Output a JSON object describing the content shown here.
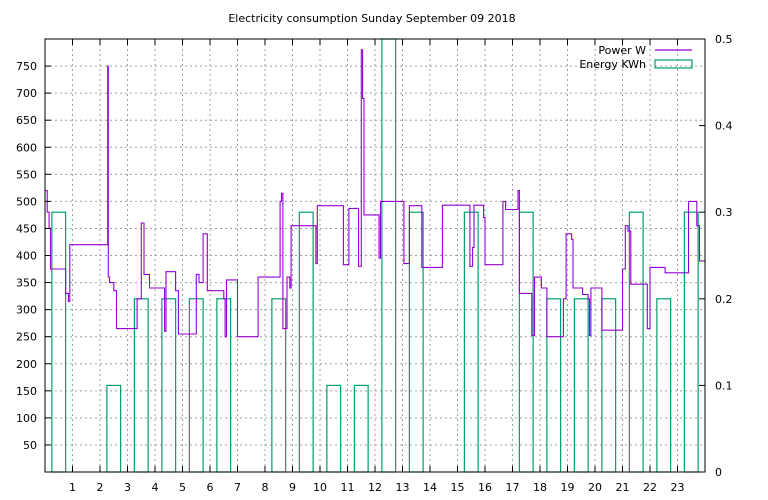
{
  "chart_data": {
    "type": "line",
    "title": "Electricity consumption Sunday September 09 2018",
    "xlabel": "",
    "ylabel": "",
    "y2label": "",
    "xlim": [
      0,
      24
    ],
    "ylim": [
      0,
      800
    ],
    "y2lim": [
      0,
      0.5
    ],
    "x_ticks": [
      "1",
      "2",
      "3",
      "4",
      "5",
      "6",
      "7",
      "8",
      "9",
      "10",
      "11",
      "12",
      "13",
      "14",
      "15",
      "16",
      "17",
      "18",
      "19",
      "20",
      "21",
      "22",
      "23"
    ],
    "y_ticks": [
      "50",
      "100",
      "150",
      "200",
      "250",
      "300",
      "350",
      "400",
      "450",
      "500",
      "550",
      "600",
      "650",
      "700",
      "750"
    ],
    "y2_ticks": [
      "0",
      "0.1",
      "0.2",
      "0.3",
      "0.4",
      "0.5"
    ],
    "grid": true,
    "legend_position": "top-right",
    "series": [
      {
        "name": "Power W",
        "axis": "left",
        "style": "step",
        "color": "#9400d3",
        "points": [
          [
            0,
            520
          ],
          [
            0.08,
            480
          ],
          [
            0.15,
            450
          ],
          [
            0.2,
            375
          ],
          [
            0.6,
            375
          ],
          [
            0.75,
            330
          ],
          [
            0.85,
            315
          ],
          [
            0.9,
            420
          ],
          [
            2.2,
            420
          ],
          [
            2.28,
            750
          ],
          [
            2.3,
            360
          ],
          [
            2.35,
            350
          ],
          [
            2.5,
            335
          ],
          [
            2.6,
            265
          ],
          [
            3.25,
            265
          ],
          [
            3.35,
            320
          ],
          [
            3.5,
            460
          ],
          [
            3.6,
            365
          ],
          [
            3.8,
            340
          ],
          [
            4.3,
            340
          ],
          [
            4.35,
            260
          ],
          [
            4.4,
            370
          ],
          [
            4.7,
            370
          ],
          [
            4.75,
            335
          ],
          [
            4.85,
            255
          ],
          [
            5.45,
            255
          ],
          [
            5.5,
            365
          ],
          [
            5.6,
            350
          ],
          [
            5.75,
            440
          ],
          [
            5.9,
            335
          ],
          [
            6.4,
            335
          ],
          [
            6.5,
            320
          ],
          [
            6.55,
            250
          ],
          [
            6.6,
            355
          ],
          [
            6.95,
            355
          ],
          [
            7.0,
            250
          ],
          [
            7.7,
            250
          ],
          [
            7.75,
            360
          ],
          [
            8.5,
            360
          ],
          [
            8.55,
            500
          ],
          [
            8.6,
            515
          ],
          [
            8.65,
            265
          ],
          [
            8.8,
            360
          ],
          [
            8.9,
            340
          ],
          [
            8.95,
            455
          ],
          [
            9.8,
            455
          ],
          [
            9.85,
            385
          ],
          [
            9.9,
            492
          ],
          [
            10.8,
            492
          ],
          [
            10.85,
            383
          ],
          [
            11.05,
            487
          ],
          [
            11.35,
            487
          ],
          [
            11.4,
            380
          ],
          [
            11.5,
            780
          ],
          [
            11.55,
            690
          ],
          [
            11.6,
            475
          ],
          [
            12.1,
            475
          ],
          [
            12.15,
            395
          ],
          [
            12.2,
            500
          ],
          [
            13.0,
            500
          ],
          [
            13.05,
            385
          ],
          [
            13.25,
            492
          ],
          [
            13.6,
            492
          ],
          [
            13.7,
            378
          ],
          [
            14.4,
            378
          ],
          [
            14.45,
            493
          ],
          [
            15.4,
            493
          ],
          [
            15.45,
            380
          ],
          [
            15.55,
            415
          ],
          [
            15.6,
            493
          ],
          [
            15.9,
            493
          ],
          [
            15.95,
            470
          ],
          [
            16.0,
            383
          ],
          [
            16.6,
            383
          ],
          [
            16.65,
            500
          ],
          [
            16.75,
            485
          ],
          [
            17.15,
            485
          ],
          [
            17.2,
            520
          ],
          [
            17.25,
            330
          ],
          [
            17.6,
            330
          ],
          [
            17.7,
            252
          ],
          [
            17.8,
            360
          ],
          [
            18.05,
            340
          ],
          [
            18.25,
            250
          ],
          [
            18.8,
            250
          ],
          [
            18.85,
            320
          ],
          [
            18.95,
            440
          ],
          [
            19.15,
            430
          ],
          [
            19.2,
            340
          ],
          [
            19.5,
            340
          ],
          [
            19.55,
            328
          ],
          [
            19.75,
            320
          ],
          [
            19.8,
            252
          ],
          [
            19.85,
            340
          ],
          [
            20.2,
            340
          ],
          [
            20.25,
            262
          ],
          [
            20.95,
            262
          ],
          [
            21.0,
            375
          ],
          [
            21.1,
            455
          ],
          [
            21.2,
            445
          ],
          [
            21.3,
            347
          ],
          [
            21.85,
            347
          ],
          [
            21.9,
            265
          ],
          [
            22.0,
            378
          ],
          [
            22.5,
            378
          ],
          [
            22.55,
            368
          ],
          [
            23.35,
            368
          ],
          [
            23.4,
            500
          ],
          [
            23.65,
            500
          ],
          [
            23.7,
            455
          ],
          [
            23.8,
            390
          ],
          [
            24,
            390
          ]
        ]
      },
      {
        "name": "Energy KWh",
        "axis": "right",
        "style": "bars",
        "color": "#009e73",
        "bar_width": 0.5,
        "x": [
          0,
          1,
          2,
          3,
          4,
          5,
          6,
          7,
          8,
          9,
          10,
          11,
          12,
          13,
          14,
          15,
          16,
          17,
          18,
          19,
          20,
          21,
          22,
          23
        ],
        "values": [
          0.3,
          0,
          0.1,
          0.2,
          0.2,
          0.2,
          0.2,
          0,
          0.2,
          0.3,
          0.1,
          0.1,
          0.5,
          0.3,
          0,
          0.3,
          0,
          0.3,
          0.2,
          0.2,
          0.2,
          0.3,
          0.2,
          0.3
        ]
      }
    ]
  }
}
